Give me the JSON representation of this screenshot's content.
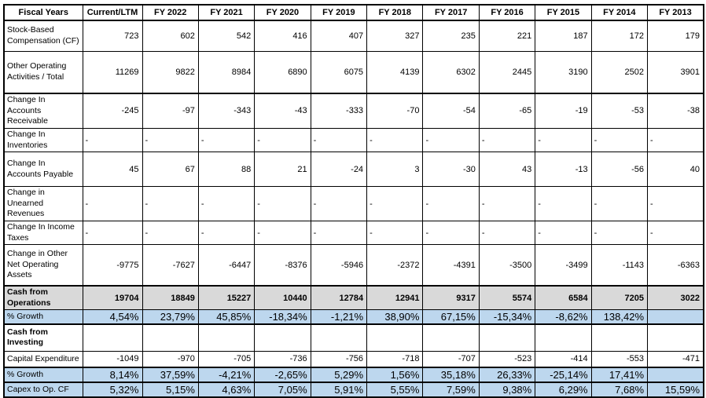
{
  "table": {
    "header": [
      "Fiscal Years",
      "Current/LTM",
      "FY 2022",
      "FY 2021",
      "FY 2020",
      "FY 2019",
      "FY 2018",
      "FY 2017",
      "FY 2016",
      "FY 2015",
      "FY 2014",
      "FY 2013"
    ],
    "rows": [
      {
        "id": "stock-based-compensation-cf",
        "label": "Stock-Based Compensation (CF)",
        "kind": "normal",
        "values": [
          "723",
          "602",
          "542",
          "416",
          "407",
          "327",
          "235",
          "221",
          "187",
          "172",
          "179"
        ]
      },
      {
        "id": "other-operating-activities-total",
        "label": "Other Operating Activities / Total",
        "kind": "normal",
        "values": [
          "11269",
          "9822",
          "8984",
          "6890",
          "6075",
          "4139",
          "6302",
          "2445",
          "3190",
          "2502",
          "3901"
        ]
      },
      {
        "id": "change-in-accounts-receivable",
        "label": "Change In Accounts Receivable",
        "kind": "normal",
        "values": [
          "-245",
          "-97",
          "-343",
          "-43",
          "-333",
          "-70",
          "-54",
          "-65",
          "-19",
          "-53",
          "-38"
        ]
      },
      {
        "id": "change-in-inventories",
        "label": "Change In Inventories",
        "kind": "normal",
        "values": [
          "-",
          "-",
          "-",
          "-",
          "-",
          "-",
          "-",
          "-",
          "-",
          "-",
          "-"
        ]
      },
      {
        "id": "change-in-accounts-payable",
        "label": "Change In Accounts Payable",
        "kind": "normal",
        "values": [
          "45",
          "67",
          "88",
          "21",
          "-24",
          "3",
          "-30",
          "43",
          "-13",
          "-56",
          "40"
        ]
      },
      {
        "id": "change-in-unearned-revenues",
        "label": "Change in Unearned Revenues",
        "kind": "normal",
        "values": [
          "-",
          "-",
          "-",
          "-",
          "-",
          "-",
          "-",
          "-",
          "-",
          "-",
          "-"
        ]
      },
      {
        "id": "change-in-income-taxes",
        "label": "Change In Income Taxes",
        "kind": "normal",
        "values": [
          "-",
          "-",
          "-",
          "-",
          "-",
          "-",
          "-",
          "-",
          "-",
          "-",
          "-"
        ]
      },
      {
        "id": "change-in-other-net-operating-assets",
        "label": "Change in Other Net Operating Assets",
        "kind": "normal",
        "values": [
          "-9775",
          "-7627",
          "-6447",
          "-8376",
          "-5946",
          "-2372",
          "-4391",
          "-3500",
          "-3499",
          "-1143",
          "-6363"
        ]
      },
      {
        "id": "cash-from-operations",
        "label": "Cash from Operations",
        "kind": "total",
        "values": [
          "19704",
          "18849",
          "15227",
          "10440",
          "12784",
          "12941",
          "9317",
          "5574",
          "6584",
          "7205",
          "3022"
        ]
      },
      {
        "id": "growth-cash-from-operations",
        "label": "% Growth",
        "kind": "growth",
        "values": [
          "4,54%",
          "23,79%",
          "45,85%",
          "-18,34%",
          "-1,21%",
          "38,90%",
          "67,15%",
          "-15,34%",
          "-8,62%",
          "138,42%",
          ""
        ]
      },
      {
        "id": "cash-from-investing",
        "label": "Cash from Investing",
        "kind": "section",
        "values": [
          "",
          "",
          "",
          "",
          "",
          "",
          "",
          "",
          "",
          "",
          ""
        ]
      },
      {
        "id": "capital-expenditure",
        "label": "Capital Expenditure",
        "kind": "normal",
        "values": [
          "-1049",
          "-970",
          "-705",
          "-736",
          "-756",
          "-718",
          "-707",
          "-523",
          "-414",
          "-553",
          "-471"
        ]
      },
      {
        "id": "growth-capital-expenditure",
        "label": "% Growth",
        "kind": "growth",
        "values": [
          "8,14%",
          "37,59%",
          "-4,21%",
          "-2,65%",
          "5,29%",
          "1,56%",
          "35,18%",
          "26,33%",
          "-25,14%",
          "17,41%",
          ""
        ]
      },
      {
        "id": "capex-to-op-cf",
        "label": "Capex to Op. CF",
        "kind": "growth",
        "values": [
          "5,32%",
          "5,15%",
          "4,63%",
          "7,05%",
          "5,91%",
          "5,55%",
          "7,59%",
          "9,38%",
          "6,29%",
          "7,68%",
          "15,59%"
        ]
      }
    ],
    "colors": {
      "growth_row_bg": "#BDD7EE",
      "total_row_bg": "#D9D9D9",
      "border": "#000000",
      "text": "#000000",
      "background": "#FFFFFF"
    }
  }
}
